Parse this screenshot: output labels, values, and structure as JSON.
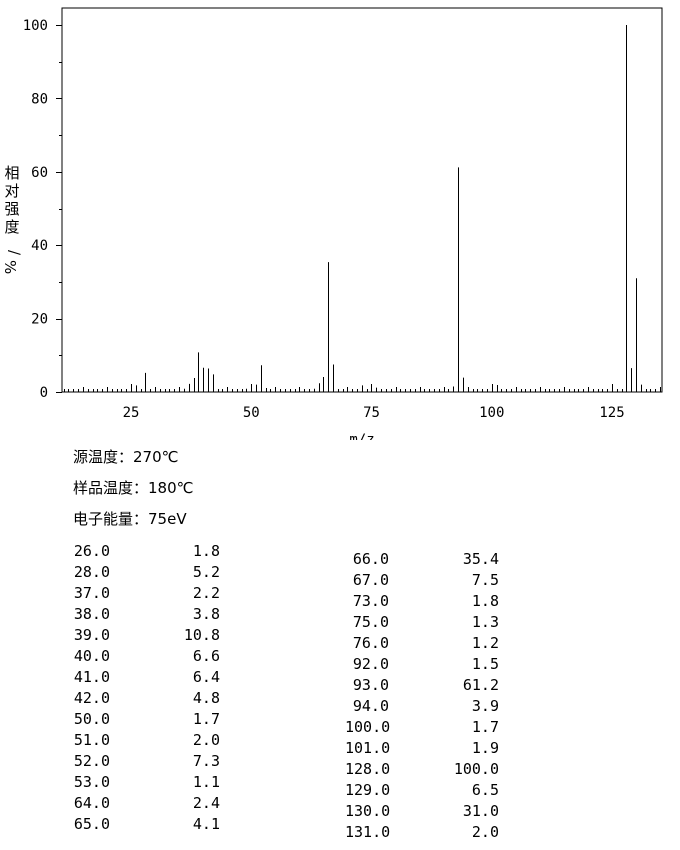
{
  "chart_data": {
    "type": "bar",
    "xlabel": "m/z",
    "ylabel": "相对强度/%",
    "xlim": [
      9,
      136
    ],
    "ylim": [
      0,
      100
    ],
    "xticks": [
      25,
      50,
      75,
      100,
      125
    ],
    "yticks": [
      0,
      20,
      40,
      60,
      80,
      100
    ],
    "grid": false,
    "major_peaks": [
      {
        "x": 26,
        "y": 1.8
      },
      {
        "x": 28,
        "y": 5.2
      },
      {
        "x": 37,
        "y": 2.2
      },
      {
        "x": 38,
        "y": 3.8
      },
      {
        "x": 39,
        "y": 10.8
      },
      {
        "x": 40,
        "y": 6.6
      },
      {
        "x": 41,
        "y": 6.4
      },
      {
        "x": 42,
        "y": 4.8
      },
      {
        "x": 50,
        "y": 1.7
      },
      {
        "x": 51,
        "y": 2.0
      },
      {
        "x": 52,
        "y": 7.3
      },
      {
        "x": 53,
        "y": 1.1
      },
      {
        "x": 64,
        "y": 2.4
      },
      {
        "x": 65,
        "y": 4.1
      },
      {
        "x": 66,
        "y": 35.4
      },
      {
        "x": 67,
        "y": 7.5
      },
      {
        "x": 73,
        "y": 1.8
      },
      {
        "x": 75,
        "y": 1.3
      },
      {
        "x": 76,
        "y": 1.2
      },
      {
        "x": 92,
        "y": 1.5
      },
      {
        "x": 93,
        "y": 61.2
      },
      {
        "x": 94,
        "y": 3.9
      },
      {
        "x": 100,
        "y": 1.7
      },
      {
        "x": 101,
        "y": 1.9
      },
      {
        "x": 128,
        "y": 100.0
      },
      {
        "x": 129,
        "y": 6.5
      },
      {
        "x": 130,
        "y": 31.0
      },
      {
        "x": 131,
        "y": 2.0
      }
    ],
    "minor_peaks": [
      {
        "x": 12,
        "y": 0.3
      },
      {
        "x": 13,
        "y": 0.4
      },
      {
        "x": 14,
        "y": 0.5
      },
      {
        "x": 15,
        "y": 0.6
      },
      {
        "x": 27,
        "y": 0.8
      },
      {
        "x": 29,
        "y": 0.6
      },
      {
        "x": 31,
        "y": 0.4
      },
      {
        "x": 32,
        "y": 0.4
      },
      {
        "x": 33,
        "y": 0.6
      },
      {
        "x": 34,
        "y": 0.5
      },
      {
        "x": 35,
        "y": 0.6
      },
      {
        "x": 36,
        "y": 0.9
      },
      {
        "x": 43,
        "y": 0.6
      },
      {
        "x": 44,
        "y": 0.5
      },
      {
        "x": 45,
        "y": 0.6
      },
      {
        "x": 46,
        "y": 0.6
      },
      {
        "x": 47,
        "y": 0.5
      },
      {
        "x": 48,
        "y": 0.6
      },
      {
        "x": 49,
        "y": 0.9
      },
      {
        "x": 54,
        "y": 0.6
      },
      {
        "x": 55,
        "y": 0.4
      },
      {
        "x": 60,
        "y": 0.4
      },
      {
        "x": 61,
        "y": 0.6
      },
      {
        "x": 62,
        "y": 0.8
      },
      {
        "x": 63,
        "y": 0.9
      },
      {
        "x": 68,
        "y": 0.4
      },
      {
        "x": 74,
        "y": 0.8
      },
      {
        "x": 77,
        "y": 0.4
      },
      {
        "x": 89,
        "y": 0.4
      },
      {
        "x": 90,
        "y": 0.4
      },
      {
        "x": 91,
        "y": 0.8
      },
      {
        "x": 95,
        "y": 0.3
      },
      {
        "x": 98,
        "y": 0.4
      },
      {
        "x": 99,
        "y": 0.6
      },
      {
        "x": 102,
        "y": 0.6
      },
      {
        "x": 126,
        "y": 0.3
      },
      {
        "x": 127,
        "y": 0.6
      }
    ]
  },
  "conditions": {
    "source_temp": "源温度：270℃",
    "sample_temp": "样品温度：180℃",
    "electron_energy": "电子能量：75eV"
  },
  "peak_table": {
    "left": [
      {
        "mz": "26.0",
        "intensity": "1.8"
      },
      {
        "mz": "28.0",
        "intensity": "5.2"
      },
      {
        "mz": "37.0",
        "intensity": "2.2"
      },
      {
        "mz": "38.0",
        "intensity": "3.8"
      },
      {
        "mz": "39.0",
        "intensity": "10.8"
      },
      {
        "mz": "40.0",
        "intensity": "6.6"
      },
      {
        "mz": "41.0",
        "intensity": "6.4"
      },
      {
        "mz": "42.0",
        "intensity": "4.8"
      },
      {
        "mz": "50.0",
        "intensity": "1.7"
      },
      {
        "mz": "51.0",
        "intensity": "2.0"
      },
      {
        "mz": "52.0",
        "intensity": "7.3"
      },
      {
        "mz": "53.0",
        "intensity": "1.1"
      },
      {
        "mz": "64.0",
        "intensity": "2.4"
      },
      {
        "mz": "65.0",
        "intensity": "4.1"
      }
    ],
    "right": [
      {
        "mz": "66.0",
        "intensity": "35.4"
      },
      {
        "mz": "67.0",
        "intensity": "7.5"
      },
      {
        "mz": "73.0",
        "intensity": "1.8"
      },
      {
        "mz": "75.0",
        "intensity": "1.3"
      },
      {
        "mz": "76.0",
        "intensity": "1.2"
      },
      {
        "mz": "92.0",
        "intensity": "1.5"
      },
      {
        "mz": "93.0",
        "intensity": "61.2"
      },
      {
        "mz": "94.0",
        "intensity": "3.9"
      },
      {
        "mz": "100.0",
        "intensity": "1.7"
      },
      {
        "mz": "101.0",
        "intensity": "1.9"
      },
      {
        "mz": "128.0",
        "intensity": "100.0"
      },
      {
        "mz": "129.0",
        "intensity": "6.5"
      },
      {
        "mz": "130.0",
        "intensity": "31.0"
      },
      {
        "mz": "131.0",
        "intensity": "2.0"
      }
    ]
  }
}
